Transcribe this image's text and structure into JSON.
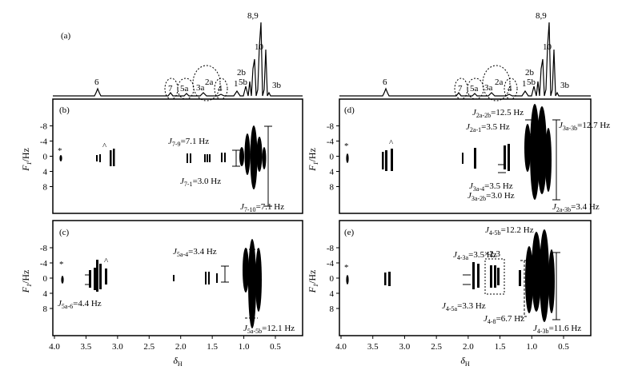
{
  "panel_labels": {
    "a": "(a)",
    "b": "(b)",
    "c": "(c)",
    "d": "(d)",
    "e": "(e)"
  },
  "axis": {
    "y_label_main": "F",
    "y_label_sub": "1",
    "y_label_unit": "/Hz",
    "x_label_main": "δ",
    "x_label_sub": "H",
    "y_ticks": [
      "-8",
      "-4",
      "0",
      "4",
      "8"
    ],
    "x_ticks": [
      "4.0",
      "3.5",
      "3.0",
      "2.5",
      "2.0",
      "1.5",
      "1.0",
      "0.5"
    ]
  },
  "spectrum_peaks": [
    "6",
    "7",
    "5a",
    "3a",
    "2a",
    "4",
    "1",
    "2b",
    "5b",
    "8,9",
    "10",
    "3b"
  ],
  "markers": {
    "star": "*",
    "caret": "^",
    "scale": "×2.3"
  },
  "couplings": {
    "b": [
      {
        "main": "J",
        "sub": "7-9",
        "rest": "=7.1 Hz"
      },
      {
        "main": "J",
        "sub": "7-1",
        "rest": "=3.0 Hz"
      },
      {
        "main": "J",
        "sub": "7-10",
        "rest": "=7.1 Hz"
      }
    ],
    "c": [
      {
        "main": "J",
        "sub": "5a-4",
        "rest": "=3.4 Hz"
      },
      {
        "main": "J",
        "sub": "5a-6",
        "rest": "=4.4 Hz"
      },
      {
        "main": "J",
        "sub": "5a-5b",
        "rest": "=12.1 Hz"
      }
    ],
    "d": [
      {
        "main": "J",
        "sub": "2a-2b",
        "rest": "=12.5 Hz"
      },
      {
        "main": "J",
        "sub": "2a-1",
        "rest": "=3.5 Hz"
      },
      {
        "main": "J",
        "sub": "3a-3b",
        "rest": "=12.7 Hz"
      },
      {
        "main": "J",
        "sub": "3a-4",
        "rest": "=3.5 Hz"
      },
      {
        "main": "J",
        "sub": "3a-2b",
        "rest": "=3.0 Hz"
      },
      {
        "main": "J",
        "sub": "2a-3b",
        "rest": "=3.4 Hz"
      }
    ],
    "e": [
      {
        "main": "J",
        "sub": "4-5b",
        "rest": "=12.2 Hz"
      },
      {
        "main": "J",
        "sub": "4-3a",
        "rest": "=3.5 Hz"
      },
      {
        "main": "J",
        "sub": "4-5a",
        "rest": "=3.3 Hz"
      },
      {
        "main": "J",
        "sub": "4-8",
        "rest": "=6.7 Hz"
      },
      {
        "main": "J",
        "sub": "4-3b",
        "rest": "=11.6 Hz"
      }
    ]
  }
}
